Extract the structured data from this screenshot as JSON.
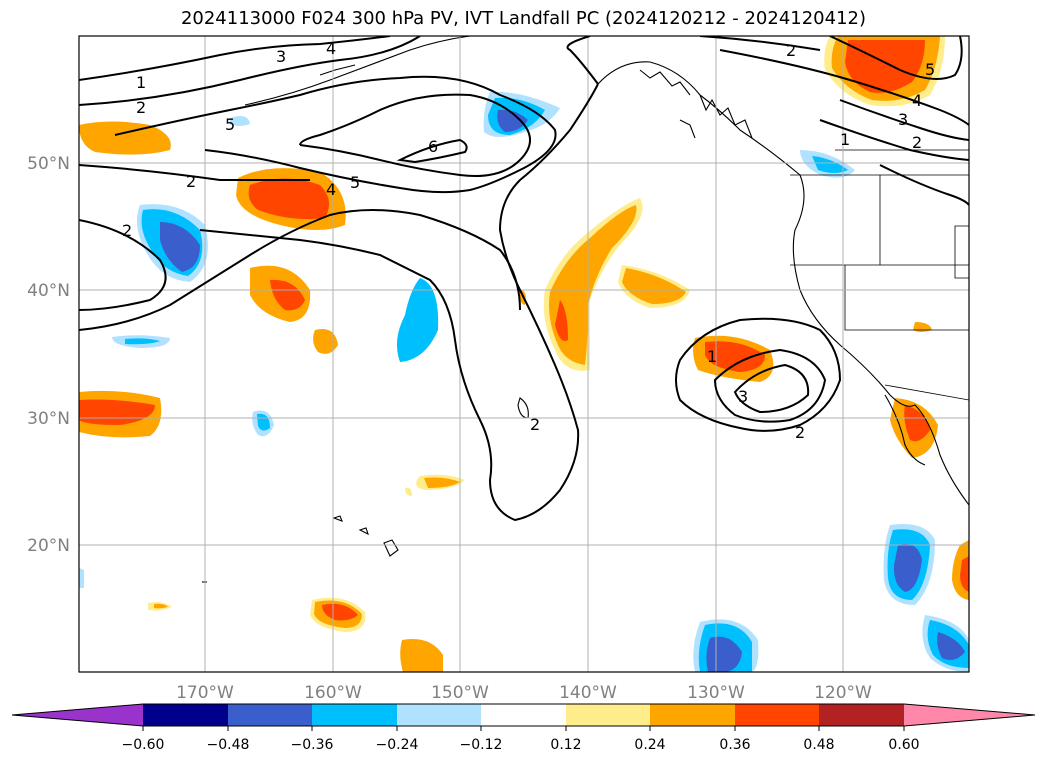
{
  "title": "2024113000 F024 300 hPa PV, IVT Landfall PC (2024120212 - 2024120412)",
  "lon_ticks": [
    "170°W",
    "160°W",
    "150°W",
    "140°W",
    "130°W",
    "120°W"
  ],
  "lat_ticks": [
    "50°N",
    "40°N",
    "30°N",
    "20°N"
  ],
  "colorbar": {
    "tick_labels": [
      "−0.60",
      "−0.48",
      "−0.36",
      "−0.24",
      "−0.12",
      "0.12",
      "0.24",
      "0.36",
      "0.48",
      "0.60"
    ],
    "colors": {
      "under": "#9933cc",
      "c1": "#00008b",
      "c2": "#3a5fcd",
      "c3": "#00bfff",
      "c4": "#b0e2ff",
      "c5": "#ffffff",
      "c6": "#ffec8b",
      "c7": "#ffa500",
      "c8": "#ff4500",
      "c9": "#b22222",
      "over": "#ff88aa"
    }
  },
  "contour_labels": [
    "1",
    "2",
    "3",
    "4",
    "5",
    "6",
    "2",
    "2",
    "4",
    "5",
    "1",
    "2",
    "3",
    "2",
    "1",
    "2",
    "4",
    "5",
    "3",
    "2",
    "1"
  ]
}
